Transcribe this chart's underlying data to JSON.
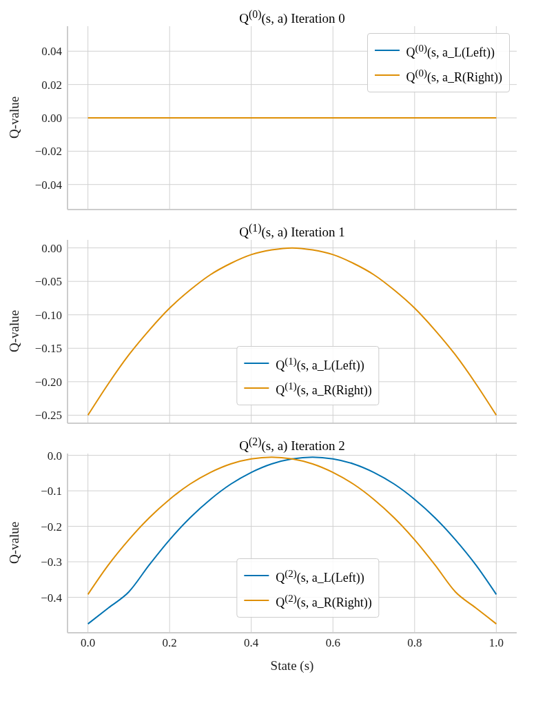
{
  "chart_data": [
    {
      "type": "line",
      "title": "Q$^{(0)}$(s, a) Iteration 0",
      "ylabel": "Q-value",
      "x": [
        0,
        0.1,
        0.2,
        0.3,
        0.4,
        0.5,
        0.6,
        0.7,
        0.8,
        0.9,
        1.0
      ],
      "xlim": [
        -0.05,
        1.05
      ],
      "xticks": [
        0,
        0.2,
        0.4,
        0.6,
        0.8,
        1.0
      ],
      "ylim": [
        -0.055,
        0.055
      ],
      "yticks": [
        -0.04,
        -0.02,
        {
          "value": 0,
          "label": "0.00"
        },
        0.02,
        0.04
      ],
      "grid": true,
      "legend": "top right",
      "tick_labels": "y",
      "marker": "none",
      "line_style": "solid",
      "series": [
        {
          "name": "Q$^{(0)}$(s, a_L(Left))",
          "color": "#0173b2",
          "values": [
            null,
            null,
            null,
            null,
            null,
            null,
            null,
            null,
            null,
            null,
            null
          ]
        },
        {
          "name": "Q$^{(0)}$(s, a_R(Right))",
          "color": "#de8f05",
          "values": [
            0,
            0,
            0,
            0,
            0,
            0,
            0,
            0,
            0,
            0,
            0
          ]
        }
      ]
    },
    {
      "type": "line",
      "title": "Q$^{(1)}$(s, a) Iteration 1",
      "ylabel": "Q-value",
      "x": [
        0,
        0.05,
        0.1,
        0.15,
        0.2,
        0.25,
        0.3,
        0.35,
        0.4,
        0.45,
        0.5,
        0.55,
        0.6,
        0.65,
        0.7,
        0.75,
        0.8,
        0.85,
        0.9,
        0.95,
        1.0
      ],
      "xlim": [
        -0.05,
        1.05
      ],
      "xticks": [
        0,
        0.2,
        0.4,
        0.6,
        0.8,
        1.0
      ],
      "ylim": [
        -0.262,
        0.012
      ],
      "yticks": [
        -0.25,
        {
          "value": -0.2,
          "label": "−0.20"
        },
        -0.15,
        {
          "value": -0.1,
          "label": "−0.10"
        },
        -0.05,
        {
          "value": 0,
          "label": "0.00"
        }
      ],
      "grid": true,
      "legend": "bottom",
      "tick_labels": "y",
      "marker": "none",
      "line_style": "solid",
      "series": [
        {
          "name": "Q$^{(1)}$(s, a_L(Left))",
          "color": "#0173b2",
          "values": [
            null,
            null,
            null,
            null,
            null,
            null,
            null,
            null,
            null,
            null,
            null,
            null,
            null,
            null,
            null,
            null,
            null,
            null,
            null,
            null,
            null
          ]
        },
        {
          "name": "Q$^{(1)}$(s, a_R(Right))",
          "color": "#de8f05",
          "values": [
            -0.25,
            -0.203,
            -0.16,
            -0.123,
            -0.09,
            -0.063,
            -0.04,
            -0.023,
            -0.01,
            -0.003,
            0,
            -0.003,
            -0.01,
            -0.023,
            -0.04,
            -0.063,
            -0.09,
            -0.123,
            -0.16,
            -0.203,
            -0.25
          ]
        }
      ]
    },
    {
      "type": "line",
      "title": "Q$^{(2)}$(s, a) Iteration 2",
      "xlabel": "State (s)",
      "ylabel": "Q-value",
      "x": [
        0,
        0.05,
        0.1,
        0.15,
        0.2,
        0.25,
        0.3,
        0.35,
        0.4,
        0.45,
        0.5,
        0.55,
        0.6,
        0.65,
        0.7,
        0.75,
        0.8,
        0.85,
        0.9,
        0.95,
        1.0
      ],
      "xlim": [
        -0.05,
        1.05
      ],
      "xticks": [
        {
          "value": 0,
          "label": "0.0"
        },
        0.2,
        0.4,
        0.6,
        0.8,
        {
          "value": 1.0,
          "label": "1.0"
        }
      ],
      "ylim": [
        -0.5,
        0.005
      ],
      "yticks": [
        -0.4,
        -0.3,
        -0.2,
        -0.1,
        {
          "value": 0,
          "label": "0.0"
        }
      ],
      "grid": true,
      "legend": "bottom",
      "marker": "none",
      "line_style": "solid",
      "series": [
        {
          "name": "Q$^{(2)}$(s, a_L(Left))",
          "color": "#0173b2",
          "values": [
            -0.475,
            -0.43,
            -0.385,
            -0.309,
            -0.238,
            -0.176,
            -0.124,
            -0.081,
            -0.048,
            -0.024,
            -0.01,
            -0.005,
            -0.01,
            -0.024,
            -0.048,
            -0.081,
            -0.124,
            -0.176,
            -0.238,
            -0.309,
            -0.392
          ]
        },
        {
          "name": "Q$^{(2)}$(s, a_R(Right))",
          "color": "#de8f05",
          "values": [
            -0.392,
            -0.309,
            -0.238,
            -0.176,
            -0.124,
            -0.081,
            -0.048,
            -0.024,
            -0.01,
            -0.005,
            -0.01,
            -0.024,
            -0.048,
            -0.081,
            -0.124,
            -0.176,
            -0.238,
            -0.309,
            -0.385,
            -0.43,
            -0.475
          ]
        }
      ]
    }
  ]
}
